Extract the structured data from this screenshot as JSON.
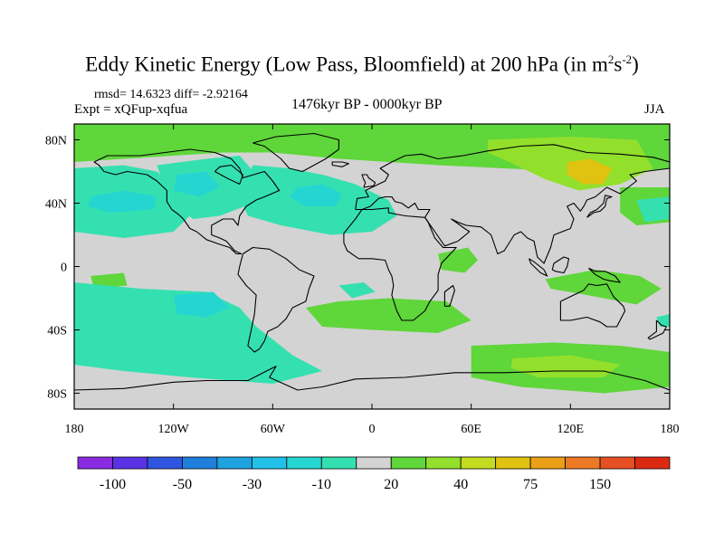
{
  "chart_data": {
    "type": "heatmap",
    "title": {
      "main": "Eddy Kinetic Energy (Low Pass, Bloomfield) at 200 hPa (in m",
      "sup1": "2",
      "mid": "s",
      "sup2": "-2",
      "end": ")"
    },
    "stats": "rmsd= 14.6323 diff= -2.92164",
    "experiment": "Expt = xQFup-xqfua",
    "period": "1476kyr BP - 0000kyr BP",
    "season": "JJA",
    "xaxis": {
      "range": [
        -180,
        180
      ],
      "ticks": [
        {
          "value": -180,
          "label": "180"
        },
        {
          "value": -120,
          "label": "120W"
        },
        {
          "value": -60,
          "label": "60W"
        },
        {
          "value": 0,
          "label": "0"
        },
        {
          "value": 60,
          "label": "60E"
        },
        {
          "value": 120,
          "label": "120E"
        },
        {
          "value": 180,
          "label": "180"
        }
      ]
    },
    "yaxis": {
      "range": [
        -90,
        90
      ],
      "ticks": [
        {
          "value": 80,
          "label": "80N"
        },
        {
          "value": 40,
          "label": "40N"
        },
        {
          "value": 0,
          "label": "0"
        },
        {
          "value": -40,
          "label": "40S"
        },
        {
          "value": -80,
          "label": "80S"
        }
      ]
    },
    "colorbar": {
      "colors": [
        "#8a2be2",
        "#5a32e6",
        "#2f55e0",
        "#1e7fdc",
        "#1fa3e0",
        "#23c0e8",
        "#25d6d0",
        "#35e0b0",
        "#d3d3d3",
        "#5fd63a",
        "#92e02c",
        "#c3dc20",
        "#e0c210",
        "#eca018",
        "#ec7a24",
        "#e65022",
        "#dc2a12"
      ],
      "labels": [
        {
          "after": 1,
          "text": "-100"
        },
        {
          "after": 3,
          "text": "-50"
        },
        {
          "after": 5,
          "text": "-30"
        },
        {
          "after": 7,
          "text": "-10"
        },
        {
          "after": 9,
          "text": "20"
        },
        {
          "after": 11,
          "text": "40"
        },
        {
          "after": 13,
          "text": "75"
        },
        {
          "after": 15,
          "text": "150"
        }
      ]
    },
    "regions": [
      {
        "name": "arctic-green-band",
        "level": 1,
        "pts": [
          [
            -180,
            90
          ],
          [
            180,
            90
          ],
          [
            180,
            62
          ],
          [
            140,
            58
          ],
          [
            120,
            60
          ],
          [
            80,
            62
          ],
          [
            40,
            64
          ],
          [
            10,
            66
          ],
          [
            -20,
            68
          ],
          [
            -60,
            72
          ],
          [
            -90,
            72
          ],
          [
            -120,
            70
          ],
          [
            -150,
            68
          ],
          [
            -180,
            66
          ]
        ]
      },
      {
        "name": "siberia-high",
        "level": 2,
        "pts": [
          [
            70,
            80
          ],
          [
            120,
            82
          ],
          [
            160,
            80
          ],
          [
            170,
            62
          ],
          [
            150,
            52
          ],
          [
            125,
            48
          ],
          [
            105,
            55
          ],
          [
            85,
            65
          ],
          [
            70,
            72
          ]
        ]
      },
      {
        "name": "siberia-peak",
        "level": 4,
        "pts": [
          [
            118,
            66
          ],
          [
            132,
            68
          ],
          [
            145,
            62
          ],
          [
            140,
            52
          ],
          [
            128,
            52
          ],
          [
            118,
            58
          ]
        ]
      },
      {
        "name": "n-pacific-green",
        "level": 1,
        "pts": [
          [
            150,
            50
          ],
          [
            180,
            50
          ],
          [
            180,
            28
          ],
          [
            160,
            26
          ],
          [
            150,
            34
          ]
        ]
      },
      {
        "name": "n-pacific-cyan-west",
        "level": -1,
        "pts": [
          [
            -180,
            62
          ],
          [
            -150,
            64
          ],
          [
            -130,
            60
          ],
          [
            -118,
            48
          ],
          [
            -110,
            32
          ],
          [
            -120,
            22
          ],
          [
            -150,
            18
          ],
          [
            -180,
            22
          ]
        ]
      },
      {
        "name": "n-america-cyan",
        "level": -1,
        "pts": [
          [
            -130,
            64
          ],
          [
            -100,
            68
          ],
          [
            -80,
            70
          ],
          [
            -70,
            58
          ],
          [
            -62,
            50
          ],
          [
            -72,
            40
          ],
          [
            -92,
            32
          ],
          [
            -108,
            30
          ],
          [
            -122,
            40
          ]
        ]
      },
      {
        "name": "n-atlantic-cyan",
        "level": -1,
        "pts": [
          [
            -72,
            64
          ],
          [
            -50,
            62
          ],
          [
            -30,
            58
          ],
          [
            -10,
            52
          ],
          [
            10,
            42
          ],
          [
            15,
            32
          ],
          [
            0,
            22
          ],
          [
            -25,
            20
          ],
          [
            -55,
            26
          ],
          [
            -75,
            32
          ],
          [
            -80,
            44
          ]
        ]
      },
      {
        "name": "n-pacific-blue",
        "level": -2,
        "pts": [
          [
            -170,
            44
          ],
          [
            -150,
            48
          ],
          [
            -130,
            44
          ],
          [
            -132,
            36
          ],
          [
            -158,
            34
          ],
          [
            -172,
            38
          ]
        ]
      },
      {
        "name": "n-america-blue",
        "level": -2,
        "pts": [
          [
            -118,
            58
          ],
          [
            -100,
            60
          ],
          [
            -92,
            50
          ],
          [
            -104,
            44
          ],
          [
            -120,
            48
          ]
        ]
      },
      {
        "name": "n-atlantic-blue",
        "level": -2,
        "pts": [
          [
            -45,
            50
          ],
          [
            -30,
            52
          ],
          [
            -18,
            46
          ],
          [
            -22,
            38
          ],
          [
            -40,
            38
          ],
          [
            -50,
            44
          ]
        ]
      },
      {
        "name": "n-pacific-east-cyan",
        "level": -1,
        "pts": [
          [
            160,
            42
          ],
          [
            180,
            44
          ],
          [
            180,
            30
          ],
          [
            165,
            28
          ]
        ]
      },
      {
        "name": "e-pacific-green-small",
        "level": 1,
        "pts": [
          [
            -170,
            -6
          ],
          [
            -150,
            -4
          ],
          [
            -148,
            -12
          ],
          [
            -168,
            -14
          ]
        ]
      },
      {
        "name": "arabia-green",
        "level": 1,
        "pts": [
          [
            40,
            8
          ],
          [
            58,
            12
          ],
          [
            64,
            4
          ],
          [
            56,
            -4
          ],
          [
            42,
            -2
          ]
        ]
      },
      {
        "name": "maritime-green",
        "level": 1,
        "pts": [
          [
            105,
            -8
          ],
          [
            135,
            -2
          ],
          [
            162,
            -6
          ],
          [
            175,
            -14
          ],
          [
            160,
            -24
          ],
          [
            130,
            -18
          ],
          [
            108,
            -14
          ]
        ]
      },
      {
        "name": "s-atlantic-green",
        "level": 1,
        "pts": [
          [
            -40,
            -26
          ],
          [
            -20,
            -22
          ],
          [
            10,
            -20
          ],
          [
            45,
            -22
          ],
          [
            60,
            -34
          ],
          [
            40,
            -42
          ],
          [
            0,
            -40
          ],
          [
            -30,
            -38
          ]
        ]
      },
      {
        "name": "s-pacific-cyan",
        "level": -1,
        "pts": [
          [
            -180,
            -10
          ],
          [
            -140,
            -14
          ],
          [
            -100,
            -16
          ],
          [
            -80,
            -26
          ],
          [
            -70,
            -38
          ],
          [
            -60,
            -46
          ],
          [
            -48,
            -56
          ],
          [
            -30,
            -66
          ],
          [
            -60,
            -74
          ],
          [
            -110,
            -70
          ],
          [
            -150,
            -66
          ],
          [
            -180,
            -62
          ]
        ]
      },
      {
        "name": "s-pacific-blue",
        "level": -2,
        "pts": [
          [
            -120,
            -18
          ],
          [
            -96,
            -16
          ],
          [
            -86,
            -26
          ],
          [
            -100,
            -32
          ],
          [
            -118,
            -30
          ]
        ]
      },
      {
        "name": "s-atlantic-cyan-small",
        "level": -1,
        "pts": [
          [
            -20,
            -12
          ],
          [
            -5,
            -10
          ],
          [
            2,
            -16
          ],
          [
            -12,
            -20
          ]
        ]
      },
      {
        "name": "s-ocean-green",
        "level": 1,
        "pts": [
          [
            60,
            -50
          ],
          [
            110,
            -48
          ],
          [
            150,
            -50
          ],
          [
            180,
            -54
          ],
          [
            180,
            -76
          ],
          [
            140,
            -80
          ],
          [
            90,
            -76
          ],
          [
            60,
            -70
          ]
        ]
      },
      {
        "name": "s-ocean-yellow",
        "level": 2,
        "pts": [
          [
            85,
            -58
          ],
          [
            120,
            -56
          ],
          [
            150,
            -62
          ],
          [
            140,
            -70
          ],
          [
            100,
            -70
          ],
          [
            84,
            -64
          ]
        ]
      },
      {
        "name": "w-pacific-cyan-east-edge",
        "level": -1,
        "pts": [
          [
            172,
            -32
          ],
          [
            180,
            -30
          ],
          [
            180,
            -38
          ],
          [
            174,
            -38
          ]
        ]
      }
    ]
  }
}
